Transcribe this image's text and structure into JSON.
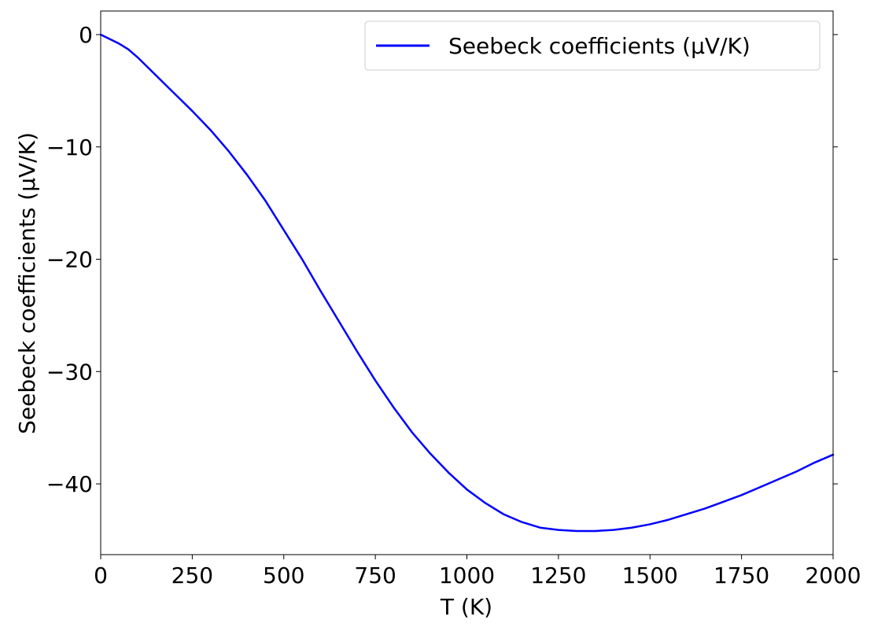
{
  "chart_data": {
    "type": "line",
    "title": "",
    "xlabel": "T (K)",
    "ylabel": "Seebeck coefficients (µV/K)",
    "xlim": [
      0,
      2000
    ],
    "ylim": [
      -46.3,
      2.1
    ],
    "xticks": [
      0,
      250,
      500,
      750,
      1000,
      1250,
      1500,
      1750,
      2000
    ],
    "yticks": [
      0,
      -10,
      -20,
      -30,
      -40
    ],
    "yticks_labels": [
      "0",
      "−10",
      "−20",
      "−30",
      "−40"
    ],
    "grid": false,
    "legend_position": "upper-right",
    "series": [
      {
        "name": "Seebeck coefficients (µV/K)",
        "color": "#0000ff",
        "x": [
          0,
          50,
          75,
          100,
          150,
          200,
          250,
          300,
          350,
          400,
          450,
          500,
          550,
          600,
          650,
          700,
          750,
          800,
          850,
          900,
          950,
          1000,
          1050,
          1100,
          1150,
          1200,
          1250,
          1300,
          1350,
          1400,
          1450,
          1500,
          1550,
          1600,
          1650,
          1700,
          1750,
          1800,
          1850,
          1900,
          1950,
          2000
        ],
        "y": [
          0,
          -0.8,
          -1.3,
          -2.0,
          -3.6,
          -5.2,
          -6.8,
          -8.5,
          -10.4,
          -12.5,
          -14.8,
          -17.4,
          -20.0,
          -22.8,
          -25.5,
          -28.2,
          -30.8,
          -33.2,
          -35.4,
          -37.3,
          -39.0,
          -40.5,
          -41.7,
          -42.7,
          -43.4,
          -43.9,
          -44.1,
          -44.2,
          -44.2,
          -44.1,
          -43.9,
          -43.6,
          -43.2,
          -42.7,
          -42.2,
          -41.6,
          -41.0,
          -40.3,
          -39.6,
          -38.9,
          -38.1,
          -37.4
        ]
      }
    ]
  }
}
